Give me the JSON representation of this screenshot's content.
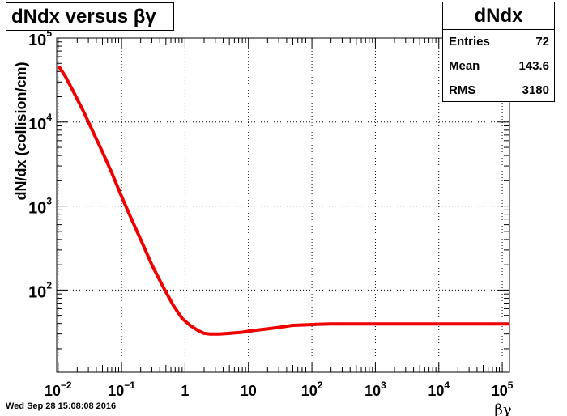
{
  "title": "dNdx versus βγ",
  "stats": {
    "name": "dNdx",
    "entries_label": "Entries",
    "entries_value": "72",
    "mean_label": "Mean",
    "mean_value": "143.6",
    "rms_label": "RMS",
    "rms_value": "3180"
  },
  "footer_timestamp": "Wed Sep 28 15:08:08 2016",
  "colors": {
    "curve": "#ee0000",
    "frame": "#000000",
    "grid": "#000000"
  },
  "chart_data": {
    "type": "line",
    "title": "dNdx versus βγ",
    "xlabel": "βγ",
    "ylabel": "dN/dx (collision/cm)",
    "xscale": "log",
    "yscale": "log",
    "xlim": [
      0.0095,
      130000
    ],
    "ylim": [
      10.5,
      100000
    ],
    "grid": true,
    "x_ticks": [
      {
        "value": 0.01,
        "label": "10",
        "exp": "−2"
      },
      {
        "value": 0.1,
        "label": "10",
        "exp": "−1"
      },
      {
        "value": 1,
        "label": "1",
        "exp": ""
      },
      {
        "value": 10,
        "label": "10",
        "exp": ""
      },
      {
        "value": 100,
        "label": "10",
        "exp": "2"
      },
      {
        "value": 1000,
        "label": "10",
        "exp": "3"
      },
      {
        "value": 10000,
        "label": "10",
        "exp": "4"
      },
      {
        "value": 100000,
        "label": "10",
        "exp": "5"
      }
    ],
    "y_ticks": [
      {
        "value": 100,
        "label": "10",
        "exp": "2"
      },
      {
        "value": 1000,
        "label": "10",
        "exp": "3"
      },
      {
        "value": 10000,
        "label": "10",
        "exp": "4"
      },
      {
        "value": 100000,
        "label": "10",
        "exp": "5"
      }
    ],
    "series": [
      {
        "x": [
          0.0105,
          0.013,
          0.018,
          0.025,
          0.035,
          0.05,
          0.07,
          0.1,
          0.14,
          0.2,
          0.3,
          0.45,
          0.65,
          0.9,
          1.2,
          1.6,
          2.0,
          2.5,
          3.5,
          5,
          8,
          12,
          20,
          35,
          50,
          80,
          120,
          200,
          400,
          1000,
          3000,
          10000,
          30000,
          125000
        ],
        "y": [
          45000,
          35000,
          22000,
          13500,
          7800,
          4400,
          2500,
          1300,
          730,
          400,
          200,
          110,
          66,
          46,
          38,
          33,
          30.5,
          30,
          30,
          30.5,
          31.5,
          33,
          34.5,
          36.5,
          38,
          38.5,
          39,
          39.5,
          39.5,
          39.5,
          39.5,
          39.5,
          39.5,
          39.5
        ]
      }
    ]
  }
}
